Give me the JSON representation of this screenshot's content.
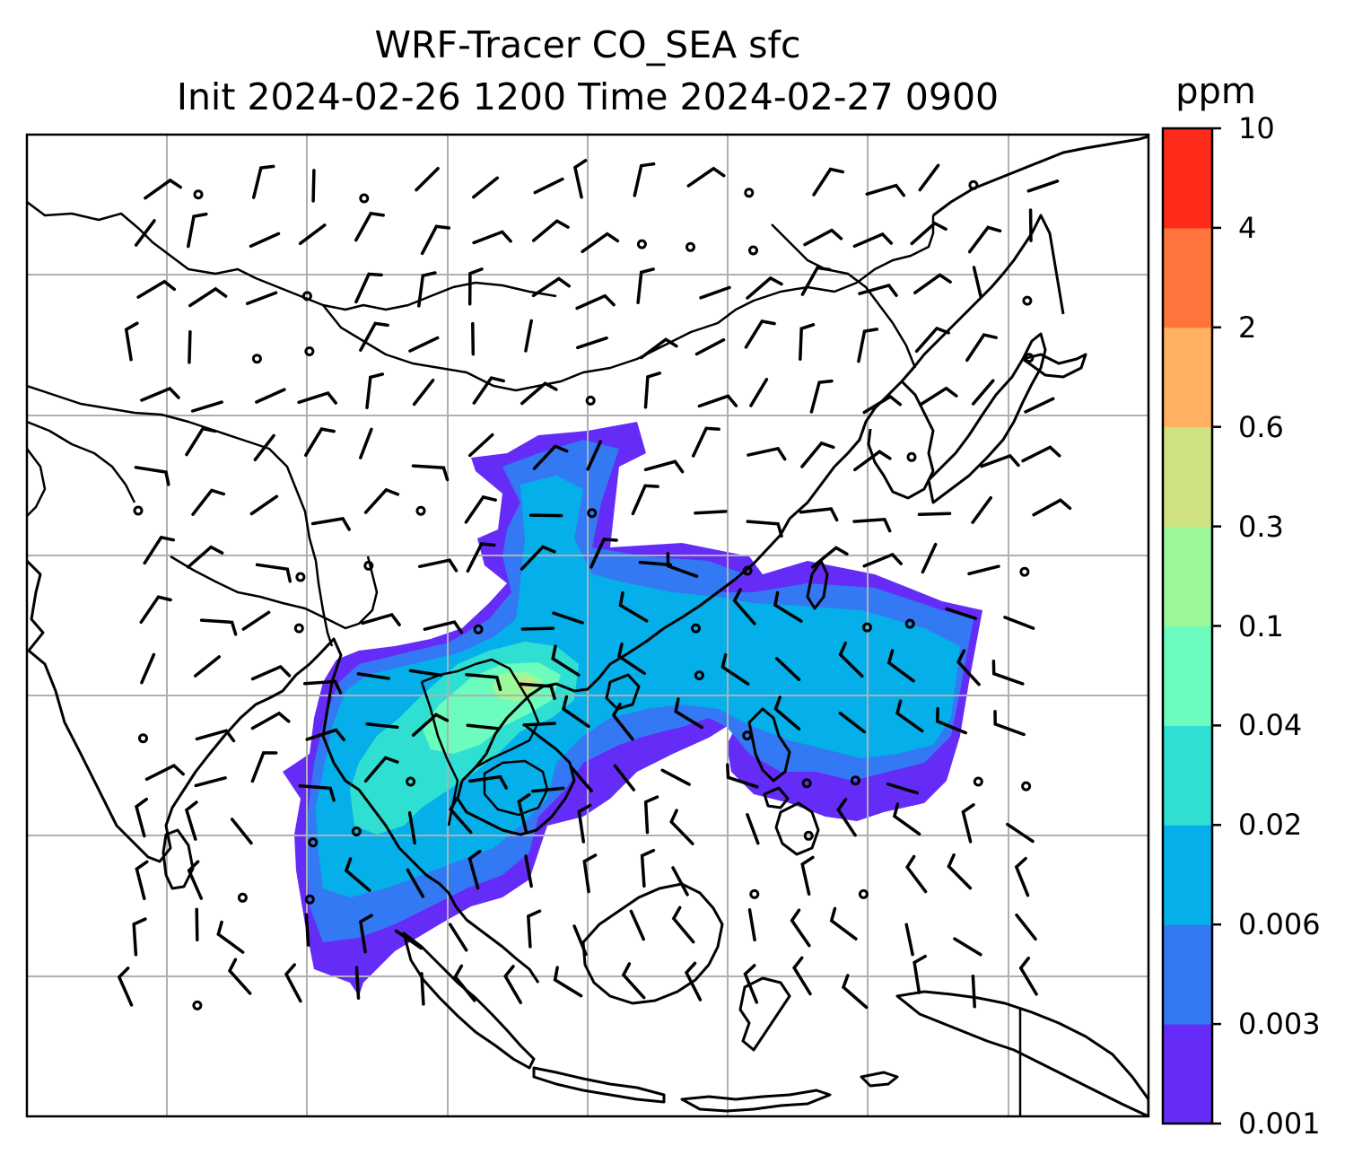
{
  "title": {
    "line1": "WRF-Tracer CO_SEA sfc",
    "line2": "Init 2024-02-26 1200 Time 2024-02-27 0900"
  },
  "colorbar": {
    "unit": "ppm",
    "levels": [
      "0.001",
      "0.003",
      "0.006",
      "0.02",
      "0.04",
      "0.1",
      "0.3",
      "0.6",
      "2",
      "4",
      "10"
    ],
    "colors": [
      "#652cf7",
      "#3379f3",
      "#05b0ea",
      "#2fe0d2",
      "#6cfcbd",
      "#9cf99a",
      "#cfe385",
      "#ffb060",
      "#ff743a",
      "#ff2a1a"
    ]
  },
  "map": {
    "gridlines": true,
    "coastline_color": "#000000",
    "grid_color": "#b0b0b0",
    "wind_barbs_color": "#000000"
  }
}
